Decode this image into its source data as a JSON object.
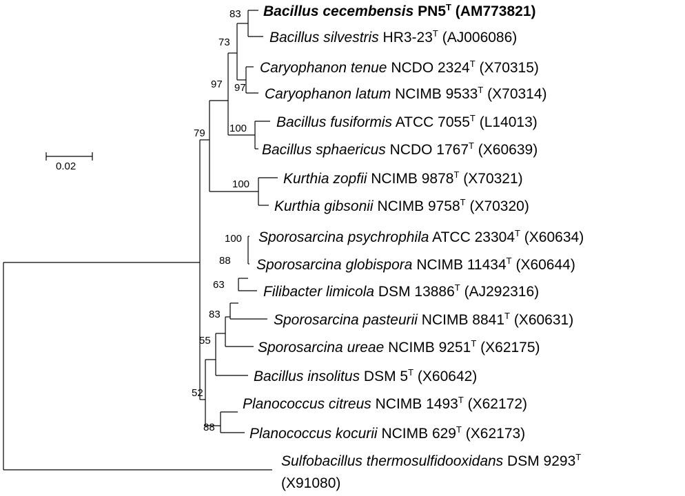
{
  "scale_bar": {
    "label": "0.02"
  },
  "taxa": [
    {
      "id": "t1",
      "genus_species": "Bacillus cecembensis",
      "strain": "PN5",
      "type_mark": "T",
      "accession": "(AM773821)",
      "bold": true
    },
    {
      "id": "t2",
      "genus_species": "Bacillus silvestris",
      "strain": "HR3-23",
      "type_mark": "T",
      "accession": "(AJ006086)"
    },
    {
      "id": "t3",
      "genus_species": "Caryophanon tenue",
      "strain": "NCDO 2324",
      "type_mark": "T",
      "accession": "(X70315)"
    },
    {
      "id": "t4",
      "genus_species": "Caryophanon latum",
      "strain": "NCIMB 9533",
      "type_mark": "T",
      "accession": "(X70314)"
    },
    {
      "id": "t5",
      "genus_species": "Bacillus fusiformis",
      "strain": "ATCC 7055",
      "type_mark": "T",
      "accession": "(L14013)"
    },
    {
      "id": "t6",
      "genus_species": "Bacillus sphaericus",
      "strain": "NCDO 1767",
      "type_mark": "T",
      "accession": "(X60639)"
    },
    {
      "id": "t7",
      "genus_species": "Kurthia zopfii",
      "strain": "NCIMB 9878",
      "type_mark": "T",
      "accession": "(X70321)"
    },
    {
      "id": "t8",
      "genus_species": "Kurthia gibsonii",
      "strain": "NCIMB 9758",
      "type_mark": "T",
      "accession": "(X70320)"
    },
    {
      "id": "t9",
      "genus_species": "Sporosarcina psychrophila",
      "strain": "ATCC 23304",
      "type_mark": "T",
      "accession": "(X60634)"
    },
    {
      "id": "t10",
      "genus_species": "Sporosarcina globispora",
      "strain": "NCIMB 11434",
      "type_mark": "T",
      "accession": "(X60644)"
    },
    {
      "id": "t11",
      "genus_species": "Filibacter limicola",
      "strain": "DSM 13886",
      "type_mark": "T",
      "accession": "(AJ292316)"
    },
    {
      "id": "t12",
      "genus_species": "Sporosarcina pasteurii",
      "strain": "NCIMB 8841",
      "type_mark": "T",
      "accession": "(X60631)"
    },
    {
      "id": "t13",
      "genus_species": "Sporosarcina ureae",
      "strain": "NCIMB 9251",
      "type_mark": "T",
      "accession": "(X62175)"
    },
    {
      "id": "t14",
      "genus_species": "Bacillus insolitus",
      "strain": "DSM 5",
      "type_mark": "T",
      "accession": "(X60642)"
    },
    {
      "id": "t15",
      "genus_species": "Planococcus citreus",
      "strain": "NCIMB 1493",
      "type_mark": "T",
      "accession": "(X62172)"
    },
    {
      "id": "t16",
      "genus_species": "Planococcus kocurii",
      "strain": "NCIMB 629",
      "type_mark": "T",
      "accession": "(X62173)"
    },
    {
      "id": "t17",
      "genus_species": "Sulfobacillus thermosulfidooxidans",
      "strain": "DSM 9293",
      "type_mark": "T",
      "accession": "(X91080)"
    }
  ],
  "bootstrap": [
    {
      "node": "cecembensis-silvestris",
      "value": "83"
    },
    {
      "node": "bacillus-pair-caryophanon",
      "value": "73"
    },
    {
      "node": "caryophanon-pair",
      "value": "97"
    },
    {
      "node": "upper-clade-inner",
      "value": "97"
    },
    {
      "node": "fusiformis-sphaericus",
      "value": "100"
    },
    {
      "node": "upper-clade-kurthia",
      "value": "79"
    },
    {
      "node": "kurthia-pair",
      "value": "100"
    },
    {
      "node": "psychrophila-globispora",
      "value": "100"
    },
    {
      "node": "sporosarcina-filibacter",
      "value": "88"
    },
    {
      "node": "plus-pasteurii",
      "value": "63"
    },
    {
      "node": "plus-ureae",
      "value": "83"
    },
    {
      "node": "plus-insolitus",
      "value": "55"
    },
    {
      "node": "lower-clade",
      "value": "52"
    },
    {
      "node": "planococcus-pair",
      "value": "88"
    }
  ]
}
